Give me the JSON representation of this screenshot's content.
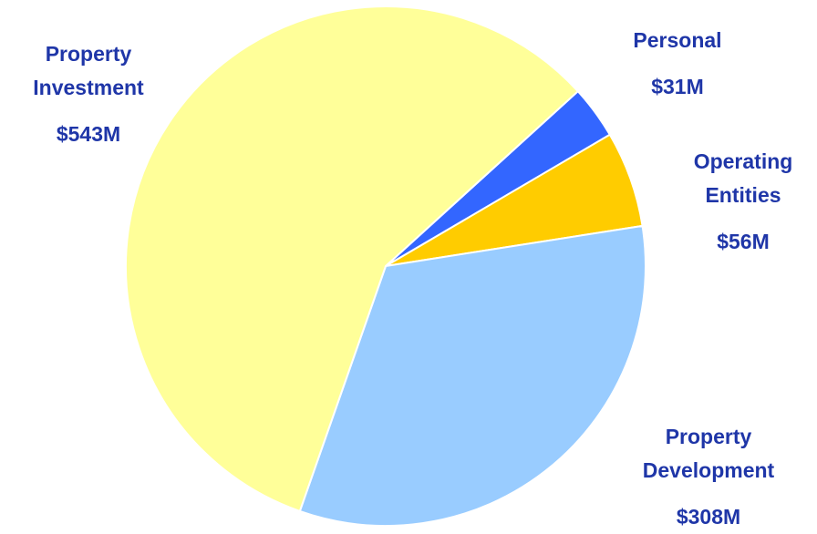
{
  "chart_data": {
    "type": "pie",
    "categories": [
      "Personal",
      "Operating Entities",
      "Property Development",
      "Property Investment"
    ],
    "values": [
      31,
      56,
      308,
      543
    ],
    "value_labels": [
      "$31M",
      "$56M",
      "$308M",
      "$543M"
    ],
    "colors": [
      "#3366ff",
      "#ffcc00",
      "#99ccff",
      "#ffff99"
    ]
  }
}
